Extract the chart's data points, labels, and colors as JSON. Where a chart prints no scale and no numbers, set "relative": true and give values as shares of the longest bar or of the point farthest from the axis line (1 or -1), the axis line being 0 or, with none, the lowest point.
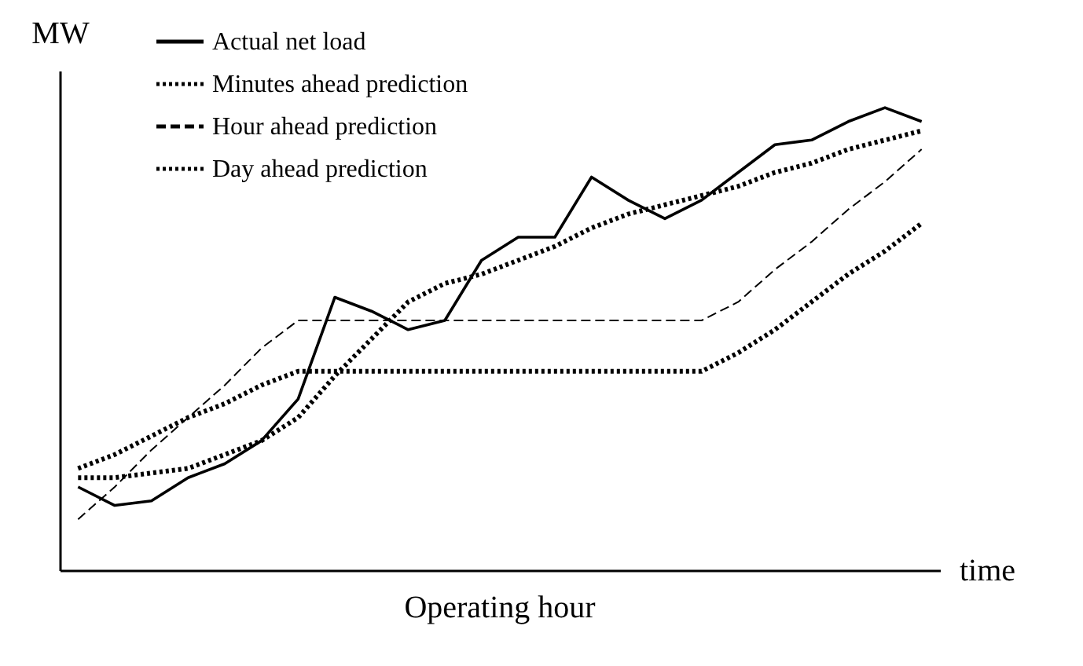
{
  "chart_data": {
    "type": "line",
    "relative": true,
    "xlabel": "time",
    "ylabel": "MW",
    "categories": [
      null,
      null,
      null,
      null,
      null,
      null,
      null,
      null,
      null,
      null,
      null,
      null,
      null,
      null,
      null,
      null,
      null,
      null,
      null,
      null,
      null,
      null,
      null,
      null
    ],
    "series": [
      {
        "name": "Actual net load",
        "color": "#000000",
        "line_style": "solid",
        "values": [
          0.18,
          0.14,
          0.15,
          0.2,
          0.23,
          0.28,
          0.37,
          0.59,
          0.56,
          0.52,
          0.54,
          0.67,
          0.72,
          0.72,
          0.85,
          0.8,
          0.76,
          0.8,
          0.86,
          0.92,
          0.93,
          0.97,
          1.0,
          0.97
        ]
      },
      {
        "name": "Minutes ahead prediction",
        "color": "#000000",
        "line_style": "dotted",
        "values": [
          0.2,
          0.2,
          0.21,
          0.22,
          0.25,
          0.28,
          0.33,
          0.42,
          0.5,
          0.58,
          0.62,
          0.64,
          0.67,
          0.7,
          0.74,
          0.77,
          0.79,
          0.81,
          0.83,
          0.86,
          0.88,
          0.91,
          0.93,
          0.95
        ]
      },
      {
        "name": "Hour ahead prediction",
        "color": "#000000",
        "line_style": "dashed",
        "values": [
          0.11,
          0.18,
          0.26,
          0.33,
          0.4,
          0.48,
          0.54,
          0.54,
          0.54,
          0.54,
          0.54,
          0.54,
          0.54,
          0.54,
          0.54,
          0.54,
          0.54,
          0.54,
          0.58,
          0.65,
          0.71,
          0.78,
          0.84,
          0.91
        ]
      },
      {
        "name": "Day ahead prediction",
        "color": "#000000",
        "line_style": "dotted",
        "values": [
          0.22,
          0.25,
          0.29,
          0.33,
          0.36,
          0.4,
          0.43,
          0.43,
          0.43,
          0.43,
          0.43,
          0.43,
          0.43,
          0.43,
          0.43,
          0.43,
          0.43,
          0.43,
          0.47,
          0.52,
          0.58,
          0.64,
          0.69,
          0.75
        ]
      }
    ],
    "annotations": [
      "Operating hour"
    ],
    "legend": "top",
    "grid": false,
    "marker": "none"
  }
}
